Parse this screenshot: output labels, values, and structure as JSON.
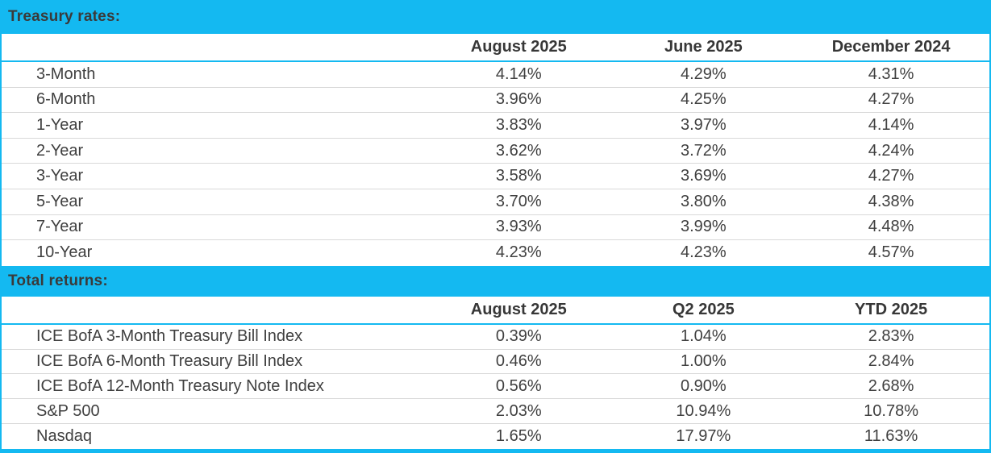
{
  "colors": {
    "accent_cyan": "#14b9f1",
    "title_text": "#3a3a3a",
    "body_text": "#404040",
    "row_divider": "#d9d9d9",
    "background": "#ffffff"
  },
  "treasury_rates": {
    "section_title": "Treasury rates:",
    "column_headers": [
      "August 2025",
      "June 2025",
      "December 2024"
    ],
    "rows": [
      {
        "label": "3-Month",
        "values": [
          "4.14%",
          "4.29%",
          "4.31%"
        ]
      },
      {
        "label": "6-Month",
        "values": [
          "3.96%",
          "4.25%",
          "4.27%"
        ]
      },
      {
        "label": "1-Year",
        "values": [
          "3.83%",
          "3.97%",
          "4.14%"
        ]
      },
      {
        "label": "2-Year",
        "values": [
          "3.62%",
          "3.72%",
          "4.24%"
        ]
      },
      {
        "label": "3-Year",
        "values": [
          "3.58%",
          "3.69%",
          "4.27%"
        ]
      },
      {
        "label": "5-Year",
        "values": [
          "3.70%",
          "3.80%",
          "4.38%"
        ]
      },
      {
        "label": "7-Year",
        "values": [
          "3.93%",
          "3.99%",
          "4.48%"
        ]
      },
      {
        "label": "10-Year",
        "values": [
          "4.23%",
          "4.23%",
          "4.57%"
        ]
      }
    ]
  },
  "total_returns": {
    "section_title": "Total returns:",
    "column_headers": [
      "August 2025",
      "Q2 2025",
      "YTD 2025"
    ],
    "rows": [
      {
        "label": "ICE BofA 3-Month Treasury Bill Index",
        "values": [
          "0.39%",
          "1.04%",
          "2.83%"
        ]
      },
      {
        "label": "ICE BofA 6-Month Treasury Bill Index",
        "values": [
          "0.46%",
          "1.00%",
          "2.84%"
        ]
      },
      {
        "label": "ICE BofA 12-Month Treasury Note Index",
        "values": [
          "0.56%",
          "0.90%",
          "2.68%"
        ]
      },
      {
        "label": "S&P 500",
        "values": [
          "2.03%",
          "10.94%",
          "10.78%"
        ]
      },
      {
        "label": "Nasdaq",
        "values": [
          "1.65%",
          "17.97%",
          "11.63%"
        ]
      }
    ]
  },
  "chart_data": {
    "type": "table",
    "tables": [
      {
        "title": "Treasury rates:",
        "columns": [
          "",
          "August 2025",
          "June 2025",
          "December 2024"
        ],
        "rows": [
          [
            "3-Month",
            "4.14%",
            "4.29%",
            "4.31%"
          ],
          [
            "6-Month",
            "3.96%",
            "4.25%",
            "4.27%"
          ],
          [
            "1-Year",
            "3.83%",
            "3.97%",
            "4.14%"
          ],
          [
            "2-Year",
            "3.62%",
            "3.72%",
            "4.24%"
          ],
          [
            "3-Year",
            "3.58%",
            "3.69%",
            "4.27%"
          ],
          [
            "5-Year",
            "3.70%",
            "3.80%",
            "4.38%"
          ],
          [
            "7-Year",
            "3.93%",
            "3.99%",
            "4.48%"
          ],
          [
            "10-Year",
            "4.23%",
            "4.23%",
            "4.57%"
          ]
        ]
      },
      {
        "title": "Total returns:",
        "columns": [
          "",
          "August 2025",
          "Q2 2025",
          "YTD 2025"
        ],
        "rows": [
          [
            "ICE BofA 3-Month Treasury Bill Index",
            "0.39%",
            "1.04%",
            "2.83%"
          ],
          [
            "ICE BofA 6-Month Treasury Bill Index",
            "0.46%",
            "1.00%",
            "2.84%"
          ],
          [
            "ICE BofA 12-Month Treasury Note Index",
            "0.56%",
            "0.90%",
            "2.68%"
          ],
          [
            "S&P 500",
            "2.03%",
            "10.94%",
            "10.78%"
          ],
          [
            "Nasdaq",
            "1.65%",
            "17.97%",
            "11.63%"
          ]
        ]
      }
    ]
  }
}
